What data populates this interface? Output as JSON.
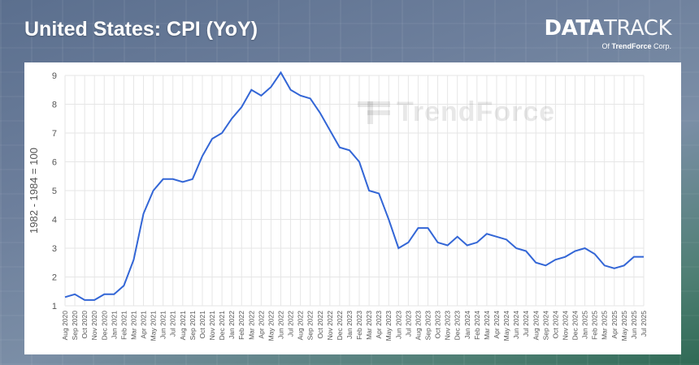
{
  "header": {
    "title": "United States: CPI (YoY)"
  },
  "brand": {
    "name_bold": "DATA",
    "name_light": "TRACK",
    "sub_prefix": "Of ",
    "sub_company": "TrendForce",
    "sub_suffix": " Corp."
  },
  "watermark": {
    "text": "TrendForce"
  },
  "colors": {
    "line": "#3366d6",
    "grid": "#e6e6e6",
    "axis_text": "#555555"
  },
  "chart_data": {
    "type": "line",
    "title": "United States: CPI (YoY)",
    "ylabel": "1982 - 1984 = 100",
    "xlabel": "",
    "ylim": [
      1,
      9
    ],
    "yticks": [
      1,
      2,
      3,
      4,
      5,
      6,
      7,
      8,
      9
    ],
    "grid": true,
    "legend": "none",
    "categories": [
      "Aug 2020",
      "Sep 2020",
      "Oct 2020",
      "Nov 2020",
      "Dec 2020",
      "Jan 2021",
      "Feb 2021",
      "Mar 2021",
      "Apr 2021",
      "May 2021",
      "Jun 2021",
      "Jul 2021",
      "Aug 2021",
      "Sep 2021",
      "Oct 2021",
      "Nov 2021",
      "Dec 2021",
      "Jan 2022",
      "Feb 2022",
      "Mar 2022",
      "Apr 2022",
      "May 2022",
      "Jun 2022",
      "Jul 2022",
      "Aug 2022",
      "Sep 2022",
      "Oct 2022",
      "Nov 2022",
      "Dec 2022",
      "Jan 2023",
      "Feb 2023",
      "Mar 2023",
      "Apr 2023",
      "May 2023",
      "Jun 2023",
      "Jul 2023",
      "Aug 2023",
      "Sep 2023",
      "Oct 2023",
      "Nov 2023",
      "Dec 2023",
      "Jan 2024",
      "Feb 2024",
      "Mar 2024",
      "Apr 2024",
      "May 2024",
      "Jun 2024",
      "Jul 2024",
      "Aug 2024",
      "Sep 2024",
      "Oct 2024",
      "Nov 2024",
      "Dec 2024",
      "Jan 2025",
      "Feb 2025",
      "Mar 2025",
      "Apr 2025",
      "May 2025",
      "Jun 2025",
      "Jul 2025"
    ],
    "series": [
      {
        "values": [
          1.3,
          1.4,
          1.2,
          1.2,
          1.4,
          1.4,
          1.7,
          2.6,
          4.2,
          5.0,
          5.4,
          5.4,
          5.3,
          5.4,
          6.2,
          6.8,
          7.0,
          7.5,
          7.9,
          8.5,
          8.3,
          8.6,
          9.1,
          8.5,
          8.3,
          8.2,
          7.7,
          7.1,
          6.5,
          6.4,
          6.0,
          5.0,
          4.9,
          4.0,
          3.0,
          3.2,
          3.7,
          3.7,
          3.2,
          3.1,
          3.4,
          3.1,
          3.2,
          3.5,
          3.4,
          3.3,
          3.0,
          2.9,
          2.5,
          2.4,
          2.6,
          2.7,
          2.9,
          3.0,
          2.8,
          2.4,
          2.3,
          2.4,
          2.7,
          2.7
        ]
      }
    ]
  }
}
